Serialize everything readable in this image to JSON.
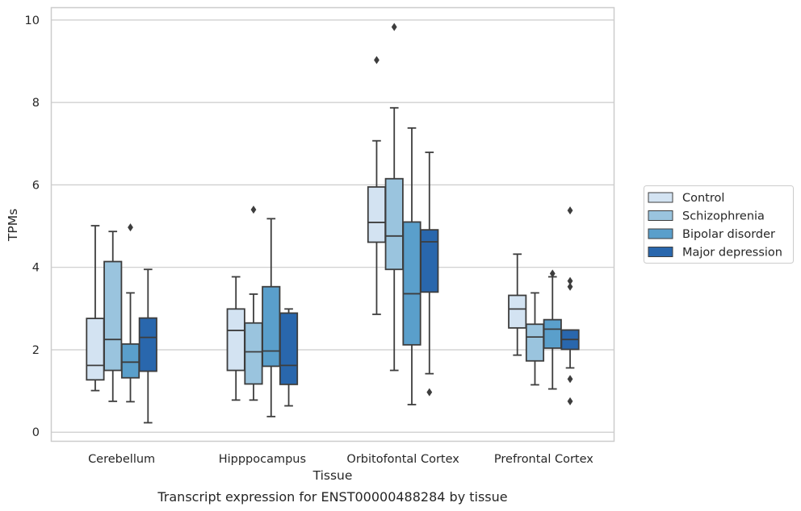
{
  "chart_data": {
    "type": "box",
    "xlabel": "Tissue",
    "ylabel": "TPMs",
    "caption": "Transcript expression for ENST00000488284 by tissue",
    "ylim": [
      -0.22,
      10.3
    ],
    "yticks": [
      0,
      2,
      4,
      6,
      8,
      10
    ],
    "grid": "horizontal",
    "legend_position": "right",
    "categories": [
      "Cerebellum",
      "Hipppocampus",
      "Orbitofontal Cortex",
      "Prefrontal Cortex"
    ],
    "series": [
      {
        "name": "Control",
        "color": "#d3e3f2",
        "boxes": [
          {
            "whislo": 1.01,
            "q1": 1.27,
            "med": 1.62,
            "q3": 2.76,
            "whishi": 5.01,
            "fliers": []
          },
          {
            "whislo": 0.78,
            "q1": 1.5,
            "med": 2.47,
            "q3": 2.99,
            "whishi": 3.77,
            "fliers": []
          },
          {
            "whislo": 2.86,
            "q1": 4.61,
            "med": 5.09,
            "q3": 5.95,
            "whishi": 7.07,
            "fliers": [
              9.03
            ]
          },
          {
            "whislo": 1.87,
            "q1": 2.53,
            "med": 2.99,
            "q3": 3.32,
            "whishi": 4.32,
            "fliers": []
          }
        ]
      },
      {
        "name": "Schizophrenia",
        "color": "#9ac4de",
        "boxes": [
          {
            "whislo": 0.75,
            "q1": 1.5,
            "med": 2.25,
            "q3": 4.14,
            "whishi": 4.87,
            "fliers": []
          },
          {
            "whislo": 0.78,
            "q1": 1.17,
            "med": 1.95,
            "q3": 2.65,
            "whishi": 3.35,
            "fliers": [
              5.4
            ]
          },
          {
            "whislo": 1.5,
            "q1": 3.95,
            "med": 4.76,
            "q3": 6.15,
            "whishi": 7.87,
            "fliers": [
              9.83
            ]
          },
          {
            "whislo": 1.15,
            "q1": 1.73,
            "med": 2.31,
            "q3": 2.62,
            "whishi": 3.38,
            "fliers": []
          }
        ]
      },
      {
        "name": "Bipolar disorder",
        "color": "#5a9fcb",
        "boxes": [
          {
            "whislo": 0.74,
            "q1": 1.32,
            "med": 1.7,
            "q3": 2.14,
            "whishi": 3.38,
            "fliers": [
              4.97
            ]
          },
          {
            "whislo": 0.38,
            "q1": 1.6,
            "med": 1.97,
            "q3": 3.53,
            "whishi": 5.18,
            "fliers": []
          },
          {
            "whislo": 0.67,
            "q1": 2.12,
            "med": 3.36,
            "q3": 5.1,
            "whishi": 7.38,
            "fliers": []
          },
          {
            "whislo": 1.05,
            "q1": 2.04,
            "med": 2.5,
            "q3": 2.73,
            "whishi": 3.77,
            "fliers": [
              3.85
            ]
          }
        ]
      },
      {
        "name": "Major depression",
        "color": "#2967ad",
        "boxes": [
          {
            "whislo": 0.23,
            "q1": 1.48,
            "med": 2.3,
            "q3": 2.77,
            "whishi": 3.95,
            "fliers": []
          },
          {
            "whislo": 0.64,
            "q1": 1.16,
            "med": 1.62,
            "q3": 2.89,
            "whishi": 2.99,
            "fliers": []
          },
          {
            "whislo": 1.42,
            "q1": 3.4,
            "med": 4.62,
            "q3": 4.91,
            "whishi": 6.79,
            "fliers": [
              0.97
            ]
          },
          {
            "whislo": 1.56,
            "q1": 2.01,
            "med": 2.25,
            "q3": 2.48,
            "whishi": 2.48,
            "fliers": [
              0.75,
              1.29,
              3.53,
              3.67,
              5.38
            ]
          }
        ]
      }
    ]
  }
}
